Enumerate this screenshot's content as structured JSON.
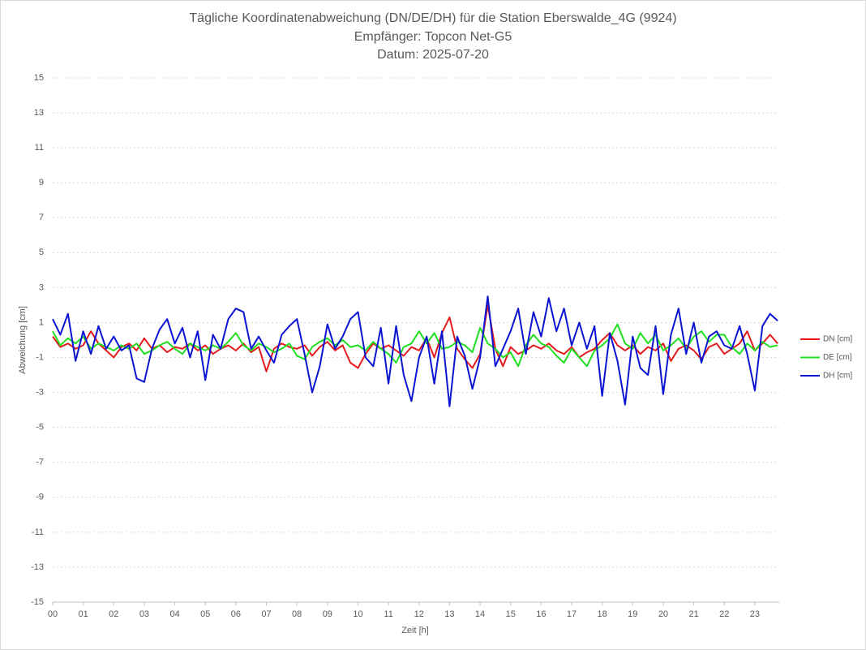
{
  "chart_data": {
    "type": "line",
    "title": [
      "Tägliche Koordinatenabweichung (DN/DE/DH) für die Station Eberswalde_4G (9924)",
      "Empfänger: Topcon Net-G5",
      "Datum: 2025-07-20"
    ],
    "xlabel": "Zeit [h]",
    "ylabel": "Abweichung [cm]",
    "legend": "right",
    "grid": true,
    "xlim": [
      0,
      23.8
    ],
    "ylim": [
      -15,
      15
    ],
    "yticks": [
      15,
      13,
      11,
      9,
      7,
      5,
      3,
      1,
      -1,
      -3,
      -5,
      -7,
      -9,
      -11,
      -13,
      -15
    ],
    "xticks": [
      {
        "value": 0,
        "label": "00"
      },
      {
        "value": 1,
        "label": "01"
      },
      {
        "value": 2,
        "label": "02"
      },
      {
        "value": 3,
        "label": "03"
      },
      {
        "value": 4,
        "label": "04"
      },
      {
        "value": 5,
        "label": "05"
      },
      {
        "value": 6,
        "label": "06"
      },
      {
        "value": 7,
        "label": "07"
      },
      {
        "value": 8,
        "label": "08"
      },
      {
        "value": 9,
        "label": "09"
      },
      {
        "value": 10,
        "label": "10"
      },
      {
        "value": 11,
        "label": "11"
      },
      {
        "value": 12,
        "label": "12"
      },
      {
        "value": 13,
        "label": "13"
      },
      {
        "value": 14,
        "label": "14"
      },
      {
        "value": 15,
        "label": "15"
      },
      {
        "value": 16,
        "label": "16"
      },
      {
        "value": 17,
        "label": "17"
      },
      {
        "value": 18,
        "label": "18"
      },
      {
        "value": 19,
        "label": "19"
      },
      {
        "value": 20,
        "label": "20"
      },
      {
        "value": 21,
        "label": "21"
      },
      {
        "value": 22,
        "label": "22"
      },
      {
        "value": 23,
        "label": "23"
      }
    ],
    "x": [
      0,
      0.25,
      0.5,
      0.75,
      1,
      1.25,
      1.5,
      1.75,
      2,
      2.25,
      2.5,
      2.75,
      3,
      3.25,
      3.5,
      3.75,
      4,
      4.25,
      4.5,
      4.75,
      5,
      5.25,
      5.5,
      5.75,
      6,
      6.25,
      6.5,
      6.75,
      7,
      7.25,
      7.5,
      7.75,
      8,
      8.25,
      8.5,
      8.75,
      9,
      9.25,
      9.5,
      9.75,
      10,
      10.25,
      10.5,
      10.75,
      11,
      11.25,
      11.5,
      11.75,
      12,
      12.25,
      12.5,
      12.75,
      13,
      13.25,
      13.5,
      13.75,
      14,
      14.25,
      14.5,
      14.75,
      15,
      15.25,
      15.5,
      15.75,
      16,
      16.25,
      16.5,
      16.75,
      17,
      17.25,
      17.5,
      17.75,
      18,
      18.25,
      18.5,
      18.75,
      19,
      19.25,
      19.5,
      19.75,
      20,
      20.25,
      20.5,
      20.75,
      21,
      21.25,
      21.5,
      21.75,
      22,
      22.25,
      22.5,
      22.75,
      23,
      23.25,
      23.5,
      23.75
    ],
    "series": [
      {
        "name": "DN [cm]",
        "color": "#e41a1c",
        "values": [
          0.2,
          -0.4,
          -0.2,
          -0.5,
          -0.3,
          0.5,
          -0.2,
          -0.6,
          -1.0,
          -0.4,
          -0.2,
          -0.6,
          0.1,
          -0.5,
          -0.3,
          -0.7,
          -0.4,
          -0.5,
          -0.2,
          -0.6,
          -0.3,
          -0.8,
          -0.5,
          -0.3,
          -0.6,
          -0.2,
          -0.7,
          -0.4,
          -1.8,
          -0.5,
          -0.2,
          -0.4,
          -0.5,
          -0.3,
          -0.9,
          -0.4,
          -0.1,
          -0.6,
          -0.3,
          -1.3,
          -1.6,
          -0.8,
          -0.2,
          -0.5,
          -0.3,
          -0.6,
          -0.9,
          -0.4,
          -0.6,
          0.1,
          -1.0,
          0.4,
          1.3,
          -0.5,
          -1.1,
          -1.6,
          -0.8,
          2.0,
          -0.5,
          -1.5,
          -0.4,
          -0.8,
          -0.6,
          -0.3,
          -0.5,
          -0.2,
          -0.6,
          -0.8,
          -0.4,
          -1.0,
          -0.7,
          -0.5,
          0.0,
          0.4,
          -0.3,
          -0.6,
          -0.3,
          -0.8,
          -0.4,
          -0.6,
          -0.2,
          -1.2,
          -0.5,
          -0.3,
          -0.6,
          -1.1,
          -0.4,
          -0.2,
          -0.8,
          -0.5,
          -0.2,
          0.5,
          -0.6,
          -0.2,
          0.3,
          -0.2
        ]
      },
      {
        "name": "DE [cm]",
        "color": "#1ee01e",
        "values": [
          0.5,
          -0.3,
          0.1,
          -0.2,
          0.2,
          -0.5,
          -0.2,
          -0.4,
          -0.6,
          -0.3,
          -0.5,
          -0.2,
          -0.8,
          -0.6,
          -0.3,
          -0.1,
          -0.5,
          -0.8,
          -0.2,
          -0.4,
          -0.6,
          -0.3,
          -0.5,
          -0.1,
          0.4,
          -0.3,
          -0.6,
          -0.2,
          -0.4,
          -0.7,
          -0.5,
          -0.2,
          -0.9,
          -1.1,
          -0.4,
          -0.1,
          0.1,
          -0.3,
          0.0,
          -0.4,
          -0.3,
          -0.6,
          -0.1,
          -0.5,
          -0.8,
          -1.3,
          -0.4,
          -0.2,
          0.5,
          -0.2,
          0.4,
          -0.5,
          -0.4,
          -0.1,
          -0.3,
          -0.7,
          0.7,
          -0.2,
          -0.5,
          -1.0,
          -0.7,
          -1.5,
          -0.3,
          0.3,
          -0.2,
          -0.4,
          -0.9,
          -1.3,
          -0.5,
          -1.0,
          -1.5,
          -0.6,
          -0.3,
          0.1,
          0.9,
          -0.2,
          -0.5,
          0.4,
          -0.2,
          0.3,
          -0.6,
          -0.3,
          0.1,
          -0.5,
          0.2,
          0.5,
          -0.1,
          0.3,
          0.3,
          -0.4,
          -0.8,
          -0.2,
          -0.6,
          -0.1,
          -0.4,
          -0.3
        ]
      },
      {
        "name": "DH [cm]",
        "color": "#0a14d2",
        "values": [
          1.2,
          0.3,
          1.5,
          -1.2,
          0.5,
          -0.8,
          0.8,
          -0.5,
          0.2,
          -0.6,
          -0.3,
          -2.2,
          -2.4,
          -0.5,
          0.6,
          1.2,
          -0.2,
          0.7,
          -1.0,
          0.5,
          -2.3,
          0.3,
          -0.5,
          1.2,
          1.8,
          1.6,
          -0.5,
          0.2,
          -0.6,
          -1.3,
          0.3,
          0.8,
          1.2,
          -0.8,
          -3.0,
          -1.5,
          0.9,
          -0.5,
          0.2,
          1.2,
          1.6,
          -1.0,
          -1.5,
          0.7,
          -2.5,
          0.8,
          -2.0,
          -3.5,
          -1.0,
          0.2,
          -2.5,
          0.5,
          -3.8,
          0.2,
          -0.9,
          -2.8,
          -1.0,
          2.5,
          -1.5,
          -0.5,
          0.5,
          1.8,
          -0.8,
          1.6,
          0.2,
          2.4,
          0.5,
          1.8,
          -0.3,
          1.0,
          -0.5,
          0.8,
          -3.2,
          0.4,
          -1.2,
          -3.7,
          0.2,
          -1.6,
          -2.0,
          0.8,
          -3.1,
          0.3,
          1.8,
          -0.8,
          1.0,
          -1.3,
          0.2,
          0.5,
          -0.3,
          -0.5,
          0.8,
          -0.8,
          -2.9,
          0.8,
          1.5,
          1.1
        ]
      }
    ]
  }
}
